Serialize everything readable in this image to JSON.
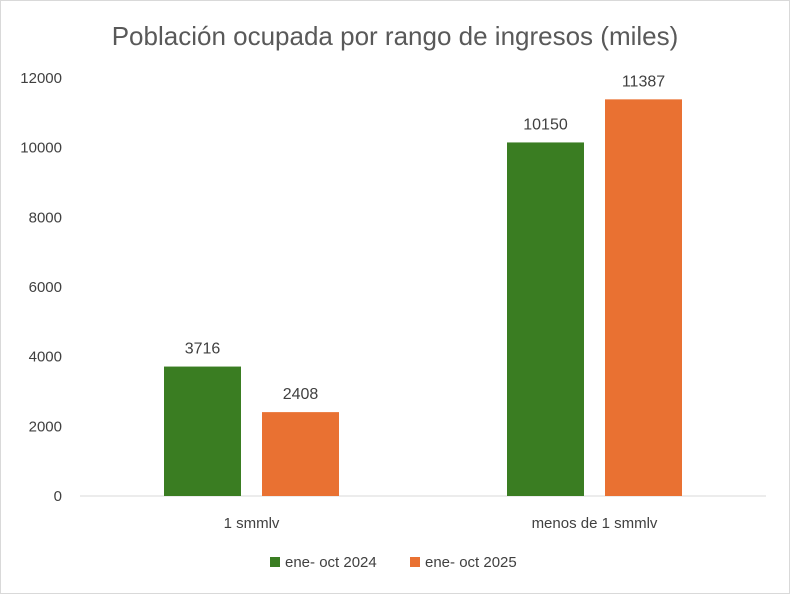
{
  "chart_data": {
    "type": "bar",
    "title": "Población ocupada por rango de ingresos (miles)",
    "categories": [
      "1 smmlv",
      "menos de 1 smmlv"
    ],
    "series": [
      {
        "name": "ene- oct 2024",
        "values": [
          3716,
          10150
        ],
        "color": "#3a7d22"
      },
      {
        "name": "ene- oct 2025",
        "values": [
          2408,
          11387
        ],
        "color": "#e97132"
      }
    ],
    "y_ticks": [
      0,
      2000,
      4000,
      6000,
      8000,
      10000,
      12000
    ],
    "ylim": [
      0,
      12000
    ],
    "xlabel": "",
    "ylabel": "",
    "grid": false,
    "legend_position": "bottom"
  }
}
